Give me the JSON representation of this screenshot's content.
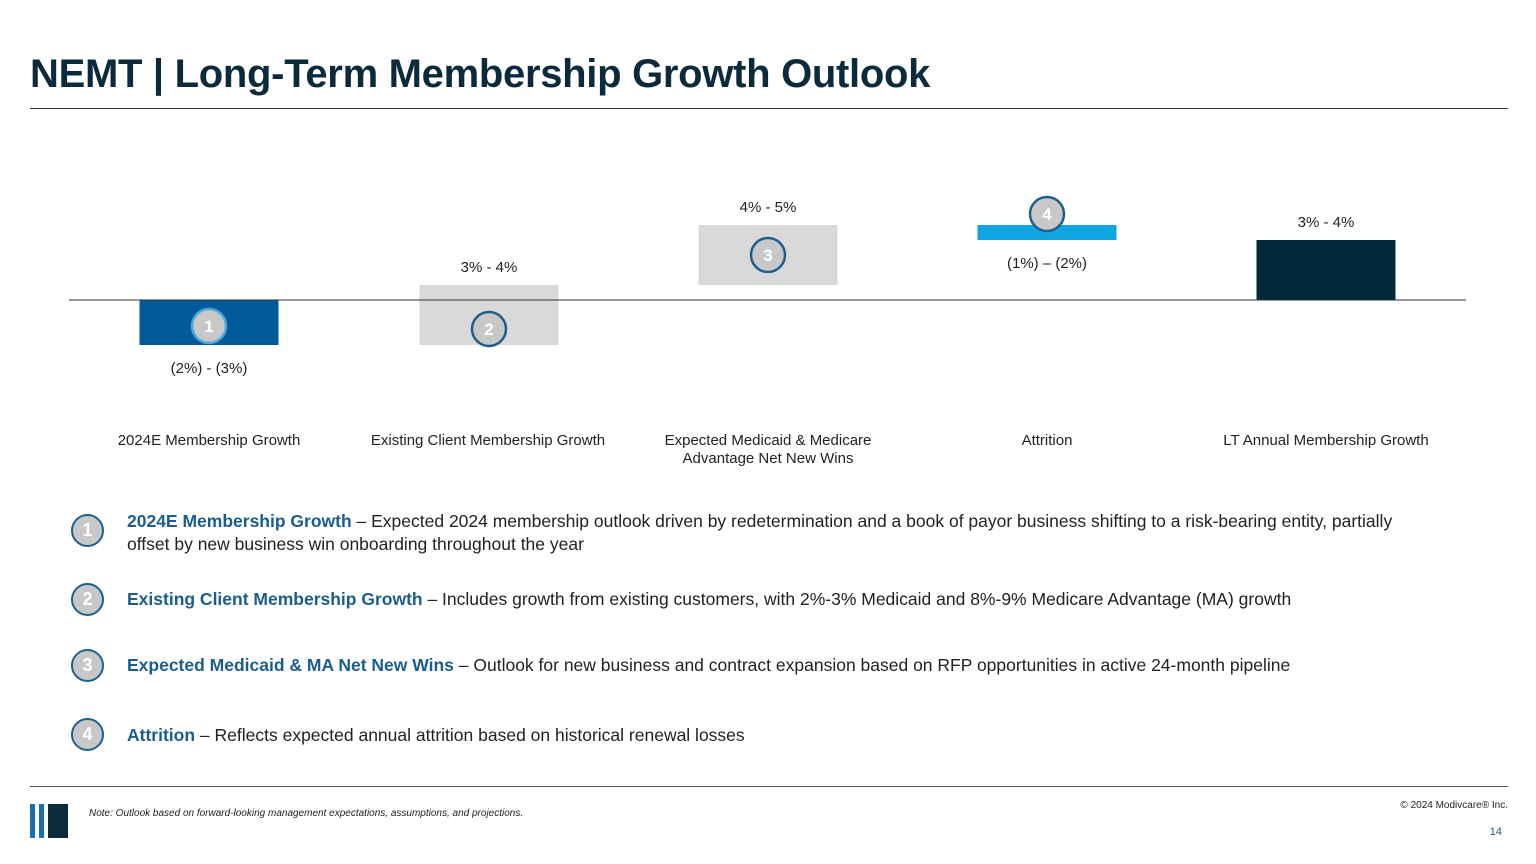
{
  "header": {
    "title": "NEMT | Long-Term Membership Growth Outlook"
  },
  "chart_data": {
    "type": "bar",
    "subtype": "waterfall",
    "categories": [
      "2024E Membership Growth",
      "Existing Client Membership Growth",
      "Expected Medicaid & Medicare Advantage Net New Wins",
      "Attrition",
      "LT Annual Membership Growth"
    ],
    "bars": [
      {
        "start": 0,
        "end": -3,
        "label": "(2%) - (3%)",
        "callout": "1",
        "color": "#005a9c"
      },
      {
        "start": -3,
        "end": 1,
        "label": "3% - 4%",
        "callout": "2",
        "color": "#d9d9d9"
      },
      {
        "start": 1,
        "end": 5,
        "label": "4% - 5%",
        "callout": "3",
        "color": "#d9d9d9"
      },
      {
        "start": 5,
        "end": 4,
        "label": "(1%) – (2%)",
        "callout": "4",
        "color": "#0ea5e0"
      },
      {
        "start": 0,
        "end": 4,
        "label": "3% - 4%",
        "callout": null,
        "color": "#002a3a"
      }
    ],
    "title": "",
    "xlabel": "",
    "ylabel": "",
    "ylim": [
      -6,
      7
    ],
    "grid": false
  },
  "callouts": [
    {
      "num": "1",
      "head": "2024E Membership Growth",
      "text": " – Expected 2024 membership outlook driven by redetermination and a book of payor business shifting to a risk-bearing entity, partially offset by new business win onboarding throughout the year"
    },
    {
      "num": "2",
      "head": "Existing Client Membership Growth",
      "text": " – Includes growth from existing customers, with 2%-3% Medicaid and 8%-9% Medicare Advantage (MA) growth"
    },
    {
      "num": "3",
      "head": "Expected Medicaid & MA Net New Wins",
      "text": " – Outlook for new business and contract expansion based on RFP opportunities in active 24-month pipeline"
    },
    {
      "num": "4",
      "head": "Attrition",
      "text": " – Reflects expected annual attrition based on historical renewal losses"
    }
  ],
  "footer": {
    "note": "Note: Outlook based on forward-looking management expectations, assumptions, and projections.",
    "copyright": "© 2024 Modivcare® Inc.",
    "page_number": "14"
  },
  "colors": {
    "title": "#0b2b3c",
    "accent": "#1a5d8f",
    "callout_fill": "#c8c8c8",
    "axis": "#333333"
  }
}
